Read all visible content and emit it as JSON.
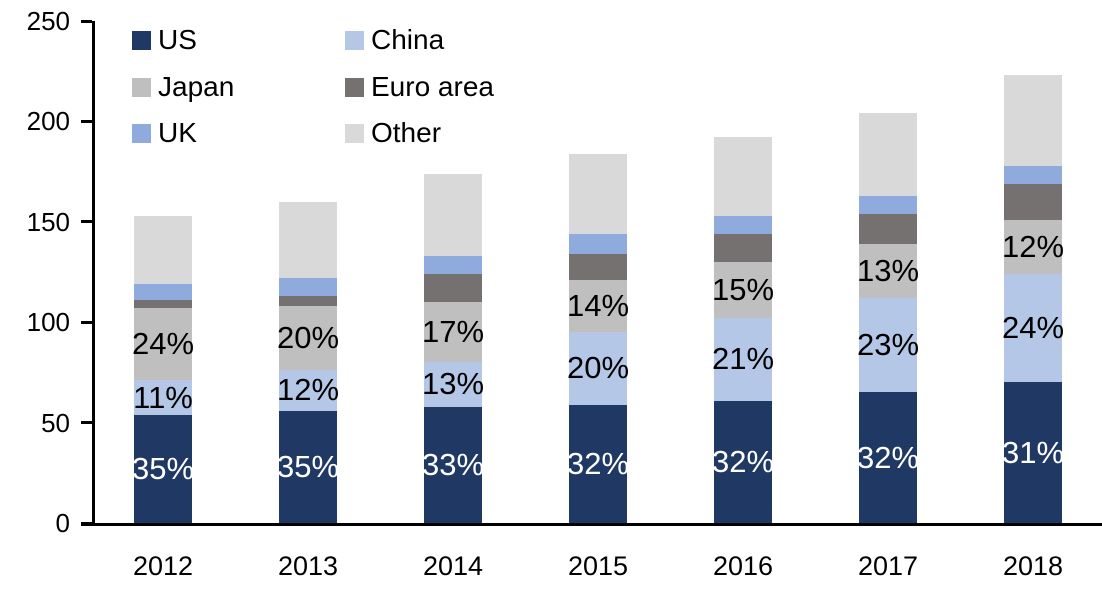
{
  "chart_data": {
    "type": "bar",
    "stacked": true,
    "title": "",
    "xlabel": "",
    "ylabel": "",
    "categories": [
      "2012",
      "2013",
      "2014",
      "2015",
      "2016",
      "2017",
      "2018"
    ],
    "series": [
      {
        "name": "US",
        "color": "#1F3864",
        "values": [
          54,
          56,
          58,
          59,
          61,
          65,
          70
        ],
        "labels": [
          "35%",
          "35%",
          "33%",
          "32%",
          "32%",
          "32%",
          "31%"
        ],
        "label_color": "#FFFFFF"
      },
      {
        "name": "China",
        "color": "#B4C7E7",
        "values": [
          17,
          20,
          22,
          36,
          41,
          47,
          54
        ],
        "labels": [
          "11%",
          "12%",
          "13%",
          "20%",
          "21%",
          "23%",
          "24%"
        ],
        "label_color": "#000000"
      },
      {
        "name": "Japan",
        "color": "#BFBFBF",
        "values": [
          36,
          32,
          30,
          26,
          28,
          27,
          27
        ],
        "labels": [
          "24%",
          "20%",
          "17%",
          "14%",
          "15%",
          "13%",
          "12%"
        ],
        "label_color": "#000000"
      },
      {
        "name": "Euro area",
        "color": "#767171",
        "values": [
          4,
          5,
          14,
          13,
          14,
          15,
          18
        ],
        "labels": null,
        "label_color": null
      },
      {
        "name": "UK",
        "color": "#8FAADC",
        "values": [
          8,
          9,
          9,
          10,
          9,
          9,
          9
        ],
        "labels": null,
        "label_color": null
      },
      {
        "name": "Other",
        "color": "#D9D9D9",
        "values": [
          34,
          38,
          41,
          40,
          39,
          41,
          45
        ],
        "labels": null,
        "label_color": null
      }
    ],
    "totals": [
      153,
      160,
      174,
      184,
      192,
      204,
      223
    ],
    "y_ticks": [
      0,
      50,
      100,
      150,
      200,
      250
    ],
    "ylim": [
      0,
      250
    ],
    "grid": false,
    "legend_position": "top-left",
    "legend_columns": 2,
    "axis_color": "#000000",
    "background_color": "#FFFFFF"
  }
}
